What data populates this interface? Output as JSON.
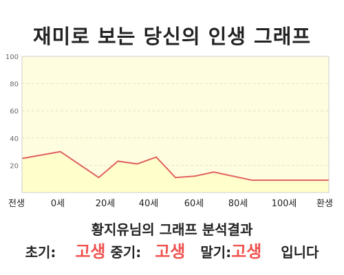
{
  "title": "재미로 보는 당신의 인생 그래프",
  "caption": "황지유님의 그래프 분석결과",
  "result": {
    "early_label": "초기:",
    "early_value": "고생",
    "mid_label": "중기:",
    "mid_value": "고생",
    "late_label": "말기:",
    "late_value": "고생",
    "suffix": "입니다"
  },
  "colors": {
    "line": "#e06060",
    "fill": "#ffffcc",
    "plot_bg": "#fffde0",
    "highlight": "#ef5350"
  },
  "chart_data": {
    "type": "area",
    "categories": [
      "전생",
      "0세",
      "20세",
      "40세",
      "60세",
      "80세",
      "100세",
      "환생"
    ],
    "x": [
      -10,
      0,
      10,
      15,
      20,
      25,
      30,
      35,
      40,
      45,
      50,
      60,
      70
    ],
    "y": [
      25,
      30,
      11,
      23,
      21,
      26,
      11,
      12,
      15,
      12,
      9,
      9,
      9
    ],
    "yticks": [
      20,
      40,
      60,
      80,
      100
    ],
    "ylim": [
      0,
      100
    ],
    "xlim": [
      -10,
      70
    ],
    "title": "",
    "xlabel": "",
    "ylabel": "",
    "grid": true
  }
}
